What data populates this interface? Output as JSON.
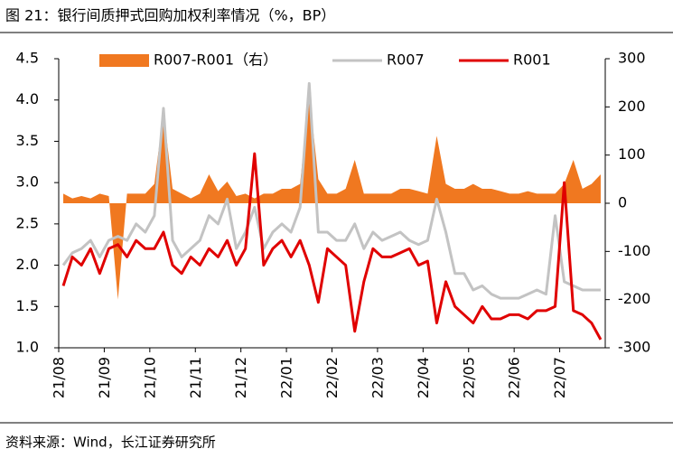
{
  "chart_data": {
    "type": "line",
    "title": "图 21：银行间质押式回购加权利率情况（%，BP）",
    "source": "资料来源：Wind，长江证券研究所",
    "categories": [
      "21/08",
      null,
      null,
      null,
      null,
      "21/09",
      null,
      null,
      null,
      null,
      "21/10",
      null,
      null,
      null,
      null,
      "21/11",
      null,
      null,
      null,
      null,
      "21/12",
      null,
      null,
      null,
      null,
      "22/01",
      null,
      null,
      null,
      null,
      "22/02",
      null,
      null,
      null,
      null,
      "22/03",
      null,
      null,
      null,
      null,
      "22/04",
      null,
      null,
      null,
      null,
      "22/05",
      null,
      null,
      null,
      null,
      "22/06",
      null,
      null,
      null,
      null,
      "22/07",
      null,
      null,
      null,
      null
    ],
    "series": [
      {
        "name": "R007-R001（右）",
        "color": "#f07820",
        "axis": "y2",
        "style": "area",
        "values": [
          20,
          10,
          15,
          10,
          20,
          15,
          -200,
          20,
          20,
          20,
          40,
          190,
          30,
          20,
          10,
          20,
          60,
          25,
          45,
          15,
          20,
          10,
          20,
          20,
          30,
          30,
          40,
          230,
          50,
          20,
          20,
          30,
          90,
          20,
          20,
          20,
          20,
          30,
          30,
          25,
          20,
          140,
          40,
          30,
          30,
          40,
          30,
          30,
          25,
          20,
          20,
          25,
          20,
          20,
          20,
          40,
          90,
          30,
          40,
          60
        ]
      },
      {
        "name": "R007",
        "color": "#c3c3c3",
        "values": [
          2.0,
          2.15,
          2.2,
          2.3,
          2.1,
          2.3,
          2.35,
          2.3,
          2.5,
          2.4,
          2.6,
          3.9,
          2.3,
          2.1,
          2.2,
          2.3,
          2.6,
          2.5,
          2.8,
          2.2,
          2.4,
          2.7,
          2.2,
          2.4,
          2.5,
          2.4,
          2.7,
          4.2,
          2.4,
          2.4,
          2.3,
          2.3,
          2.5,
          2.2,
          2.4,
          2.3,
          2.35,
          2.4,
          2.3,
          2.25,
          2.3,
          2.8,
          2.4,
          1.9,
          1.9,
          1.7,
          1.75,
          1.65,
          1.6,
          1.6,
          1.6,
          1.65,
          1.7,
          1.65,
          2.6,
          1.8,
          1.75,
          1.7,
          1.7,
          1.7
        ]
      },
      {
        "name": "R001",
        "color": "#e00000",
        "values": [
          1.75,
          2.1,
          2.0,
          2.2,
          1.9,
          2.2,
          2.25,
          2.1,
          2.3,
          2.2,
          2.2,
          2.4,
          2.0,
          1.9,
          2.1,
          2.0,
          2.2,
          2.1,
          2.3,
          2.0,
          2.2,
          3.35,
          2.0,
          2.2,
          2.3,
          2.1,
          2.3,
          2.0,
          1.55,
          2.2,
          2.1,
          2.0,
          1.2,
          1.8,
          2.2,
          2.1,
          2.1,
          2.15,
          2.2,
          2.0,
          2.05,
          1.3,
          1.8,
          1.5,
          1.4,
          1.3,
          1.5,
          1.35,
          1.35,
          1.4,
          1.4,
          1.35,
          1.45,
          1.45,
          1.5,
          3.0,
          1.45,
          1.4,
          1.3,
          1.1
        ]
      }
    ],
    "ylim": [
      1,
      4.5
    ],
    "yticks": [
      {
        "value": 1,
        "label": "1.0"
      },
      1.5,
      {
        "value": 2,
        "label": "2.0"
      },
      2.5,
      {
        "value": 3,
        "label": "3.0"
      },
      3.5,
      {
        "value": 4,
        "label": "4.0"
      },
      4.5
    ],
    "y2lim": [
      -300,
      300
    ],
    "y2ticks": [
      -300,
      -200,
      -100,
      0,
      100,
      200,
      300
    ],
    "legend": "top"
  }
}
